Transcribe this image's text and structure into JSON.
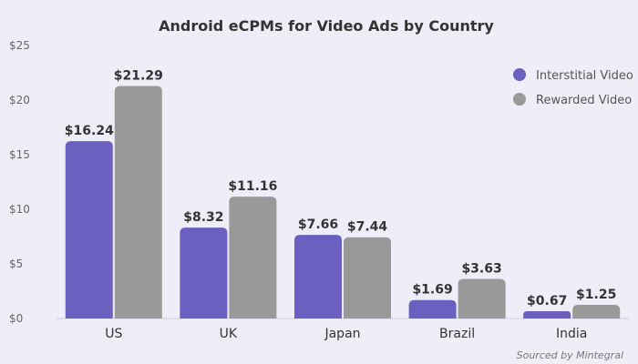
{
  "chart_data": {
    "type": "bar",
    "title": "Android eCPMs for Video Ads by Country",
    "xlabel": "",
    "ylabel": "",
    "categories": [
      "US",
      "UK",
      "Japan",
      "Brazil",
      "India"
    ],
    "series": [
      {
        "name": "Interstitial Video",
        "values": [
          16.24,
          8.32,
          7.66,
          1.69,
          0.67
        ],
        "labels": [
          "$16.24",
          "$8.32",
          "$7.66",
          "$1.69",
          "$0.67"
        ],
        "color": "#6b5fc0"
      },
      {
        "name": "Rewarded Video",
        "values": [
          21.29,
          11.16,
          7.44,
          3.63,
          1.25
        ],
        "labels": [
          "$21.29",
          "$11.16",
          "$7.44",
          "$3.63",
          "$1.25"
        ],
        "color": "#999999"
      }
    ],
    "ylim": [
      0,
      25
    ],
    "yticks": [
      0,
      5,
      10,
      15,
      20,
      25
    ],
    "ytick_labels": [
      "$0",
      "$5",
      "$10",
      "$15",
      "$20",
      "$25"
    ],
    "grid": false,
    "legend_position": "top-right",
    "source_note": "Sourced by Mintegral"
  },
  "colors": {
    "background": "#efedf8",
    "axis": "#cfcde0",
    "text": "#333333",
    "tick": "#666666"
  }
}
